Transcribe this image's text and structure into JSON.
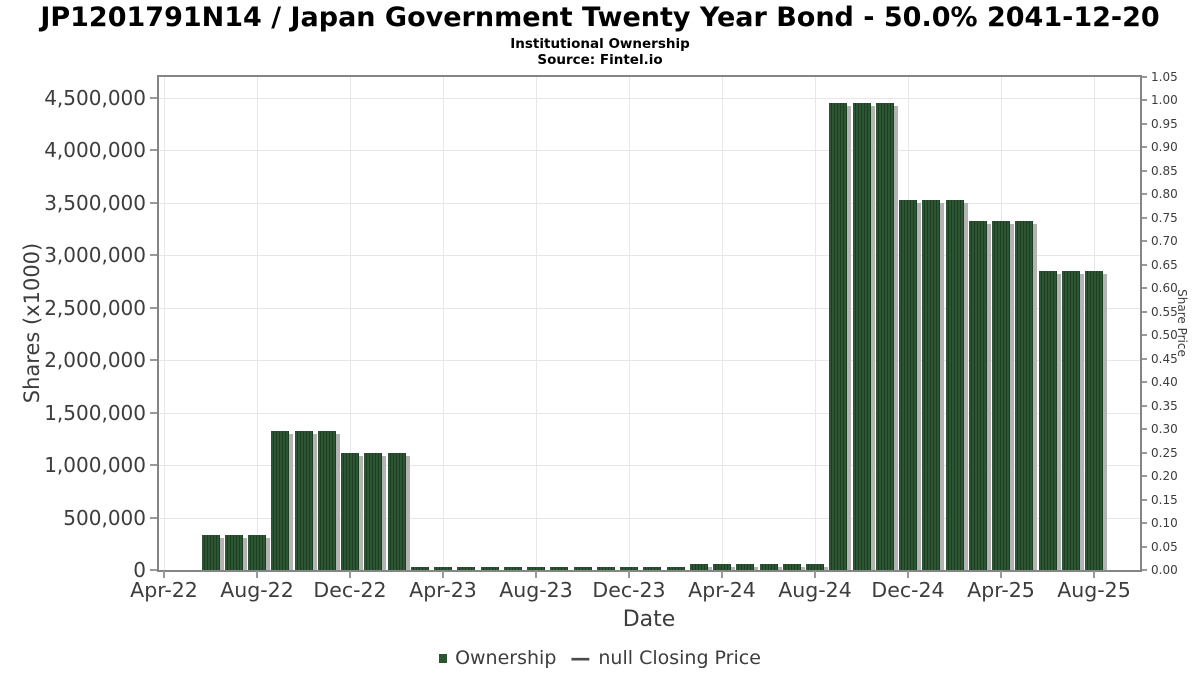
{
  "header": {
    "title": "JP1201791N14 / Japan Government Twenty Year Bond - 50.0% 2041-12-20",
    "subtitle": "Institutional Ownership",
    "source": "Source: Fintel.io"
  },
  "chart_data": {
    "type": "bar",
    "title": "Institutional Ownership",
    "xlabel": "Date",
    "ylabel_left": "Shares (x1000)",
    "ylabel_right": "Share Price",
    "grid": true,
    "legend_position": "bottom",
    "x_tick_labels": [
      "Apr-22",
      "Aug-22",
      "Dec-22",
      "Apr-23",
      "Aug-23",
      "Dec-23",
      "Apr-24",
      "Aug-24",
      "Dec-24",
      "Apr-25",
      "Aug-25"
    ],
    "y_left_axis": {
      "min": 0,
      "max": 4700000,
      "tick_step": 500000,
      "tick_labels": [
        "0",
        "500,000",
        "1,000,000",
        "1,500,000",
        "2,000,000",
        "2,500,000",
        "3,000,000",
        "3,500,000",
        "4,000,000",
        "4,500,000"
      ]
    },
    "y_right_axis": {
      "min": 0.0,
      "max": 1.05,
      "tick_step": 0.05
    },
    "series": [
      {
        "name": "Ownership",
        "type": "bar",
        "color": "#2c5632",
        "x": [
          "Jun-22",
          "Jul-22",
          "Aug-22",
          "Sep-22",
          "Oct-22",
          "Nov-22",
          "Dec-22",
          "Jan-23",
          "Feb-23",
          "Mar-23",
          "Apr-23",
          "May-23",
          "Jun-23",
          "Jul-23",
          "Aug-23",
          "Sep-23",
          "Oct-23",
          "Nov-23",
          "Dec-23",
          "Jan-24",
          "Feb-24",
          "Mar-24",
          "Apr-24",
          "May-24",
          "Jun-24",
          "Jul-24",
          "Aug-24",
          "Sep-24",
          "Oct-24",
          "Nov-24",
          "Dec-24",
          "Jan-25",
          "Feb-25",
          "Mar-25",
          "Apr-25",
          "May-25",
          "Jun-25",
          "Jul-25",
          "Aug-25"
        ],
        "values": [
          330000,
          330000,
          330000,
          1330000,
          1330000,
          1330000,
          1120000,
          1120000,
          1120000,
          25000,
          25000,
          25000,
          25000,
          25000,
          25000,
          25000,
          25000,
          25000,
          25000,
          25000,
          25000,
          60000,
          60000,
          60000,
          60000,
          60000,
          60000,
          4450000,
          4450000,
          4450000,
          3530000,
          3530000,
          3530000,
          3330000,
          3330000,
          3330000,
          2850000,
          2850000,
          2850000
        ]
      },
      {
        "name": "null Closing Price",
        "type": "line",
        "color": "#4a4a4a",
        "values": []
      }
    ]
  },
  "legend": {
    "items": [
      {
        "label": "Ownership",
        "marker": "square",
        "color": "#2c5632"
      },
      {
        "label": "null Closing Price",
        "marker": "dash",
        "color": "#4a4a4a"
      }
    ]
  },
  "colors": {
    "bar": "#2c5632",
    "bar_stripe": "#1e3d24",
    "bar_shadow": "#b3b3b3",
    "grid": "#e7e7e7",
    "plot_border": "#858585",
    "tick_text": "#3d3d3d",
    "title_text": "#000000"
  }
}
